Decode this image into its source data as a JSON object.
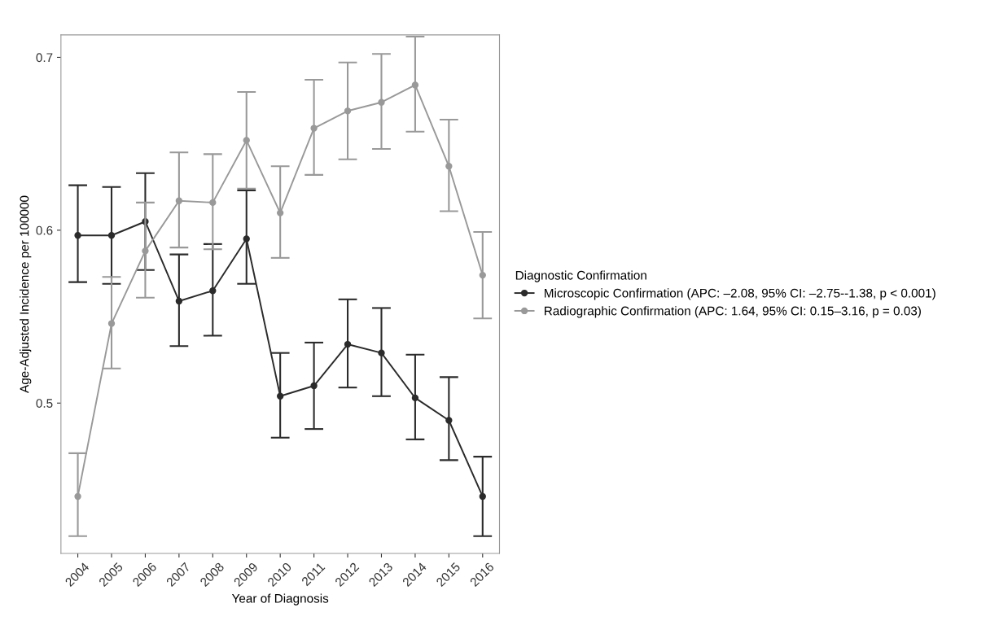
{
  "chart_data": {
    "type": "line",
    "xlabel": "Year of Diagnosis",
    "ylabel": "Age-Adjusted Incidence per 100000",
    "legend_title": "Diagnostic Confirmation",
    "categories": [
      "2004",
      "2005",
      "2006",
      "2007",
      "2008",
      "2009",
      "2010",
      "2011",
      "2012",
      "2013",
      "2014",
      "2015",
      "2016"
    ],
    "series": [
      {
        "name": "Microscopic Confirmation (APC: –2.08, 95% CI: –2.75--1.38, p < 0.001)",
        "color": "#2b2b2b",
        "values": [
          0.597,
          0.597,
          0.605,
          0.559,
          0.565,
          0.595,
          0.504,
          0.51,
          0.534,
          0.529,
          0.503,
          0.49,
          0.446
        ],
        "errors": [
          [
            0.57,
            0.626
          ],
          [
            0.569,
            0.625
          ],
          [
            0.577,
            0.633
          ],
          [
            0.533,
            0.586
          ],
          [
            0.539,
            0.592
          ],
          [
            0.569,
            0.623
          ],
          [
            0.48,
            0.529
          ],
          [
            0.485,
            0.535
          ],
          [
            0.509,
            0.56
          ],
          [
            0.504,
            0.555
          ],
          [
            0.479,
            0.528
          ],
          [
            0.467,
            0.515
          ],
          [
            0.423,
            0.469
          ]
        ]
      },
      {
        "name": "Radiographic Confirmation (APC: 1.64, 95% CI: 0.15–3.16, p = 0.03)",
        "color": "#999999",
        "values": [
          0.446,
          0.546,
          0.588,
          0.617,
          0.616,
          0.652,
          0.61,
          0.659,
          0.669,
          0.674,
          0.684,
          0.637,
          0.574
        ],
        "errors": [
          [
            0.423,
            0.471
          ],
          [
            0.52,
            0.573
          ],
          [
            0.561,
            0.616
          ],
          [
            0.59,
            0.645
          ],
          [
            0.589,
            0.644
          ],
          [
            0.624,
            0.68
          ],
          [
            0.584,
            0.637
          ],
          [
            0.632,
            0.687
          ],
          [
            0.641,
            0.697
          ],
          [
            0.647,
            0.702
          ],
          [
            0.657,
            0.712
          ],
          [
            0.611,
            0.664
          ],
          [
            0.549,
            0.599
          ]
        ]
      }
    ],
    "ylim": [
      0.413,
      0.713
    ],
    "yticks": [
      0.5,
      0.6,
      0.7
    ],
    "marker": "circle",
    "line_style": "solid",
    "grid": false,
    "legend": "right"
  }
}
